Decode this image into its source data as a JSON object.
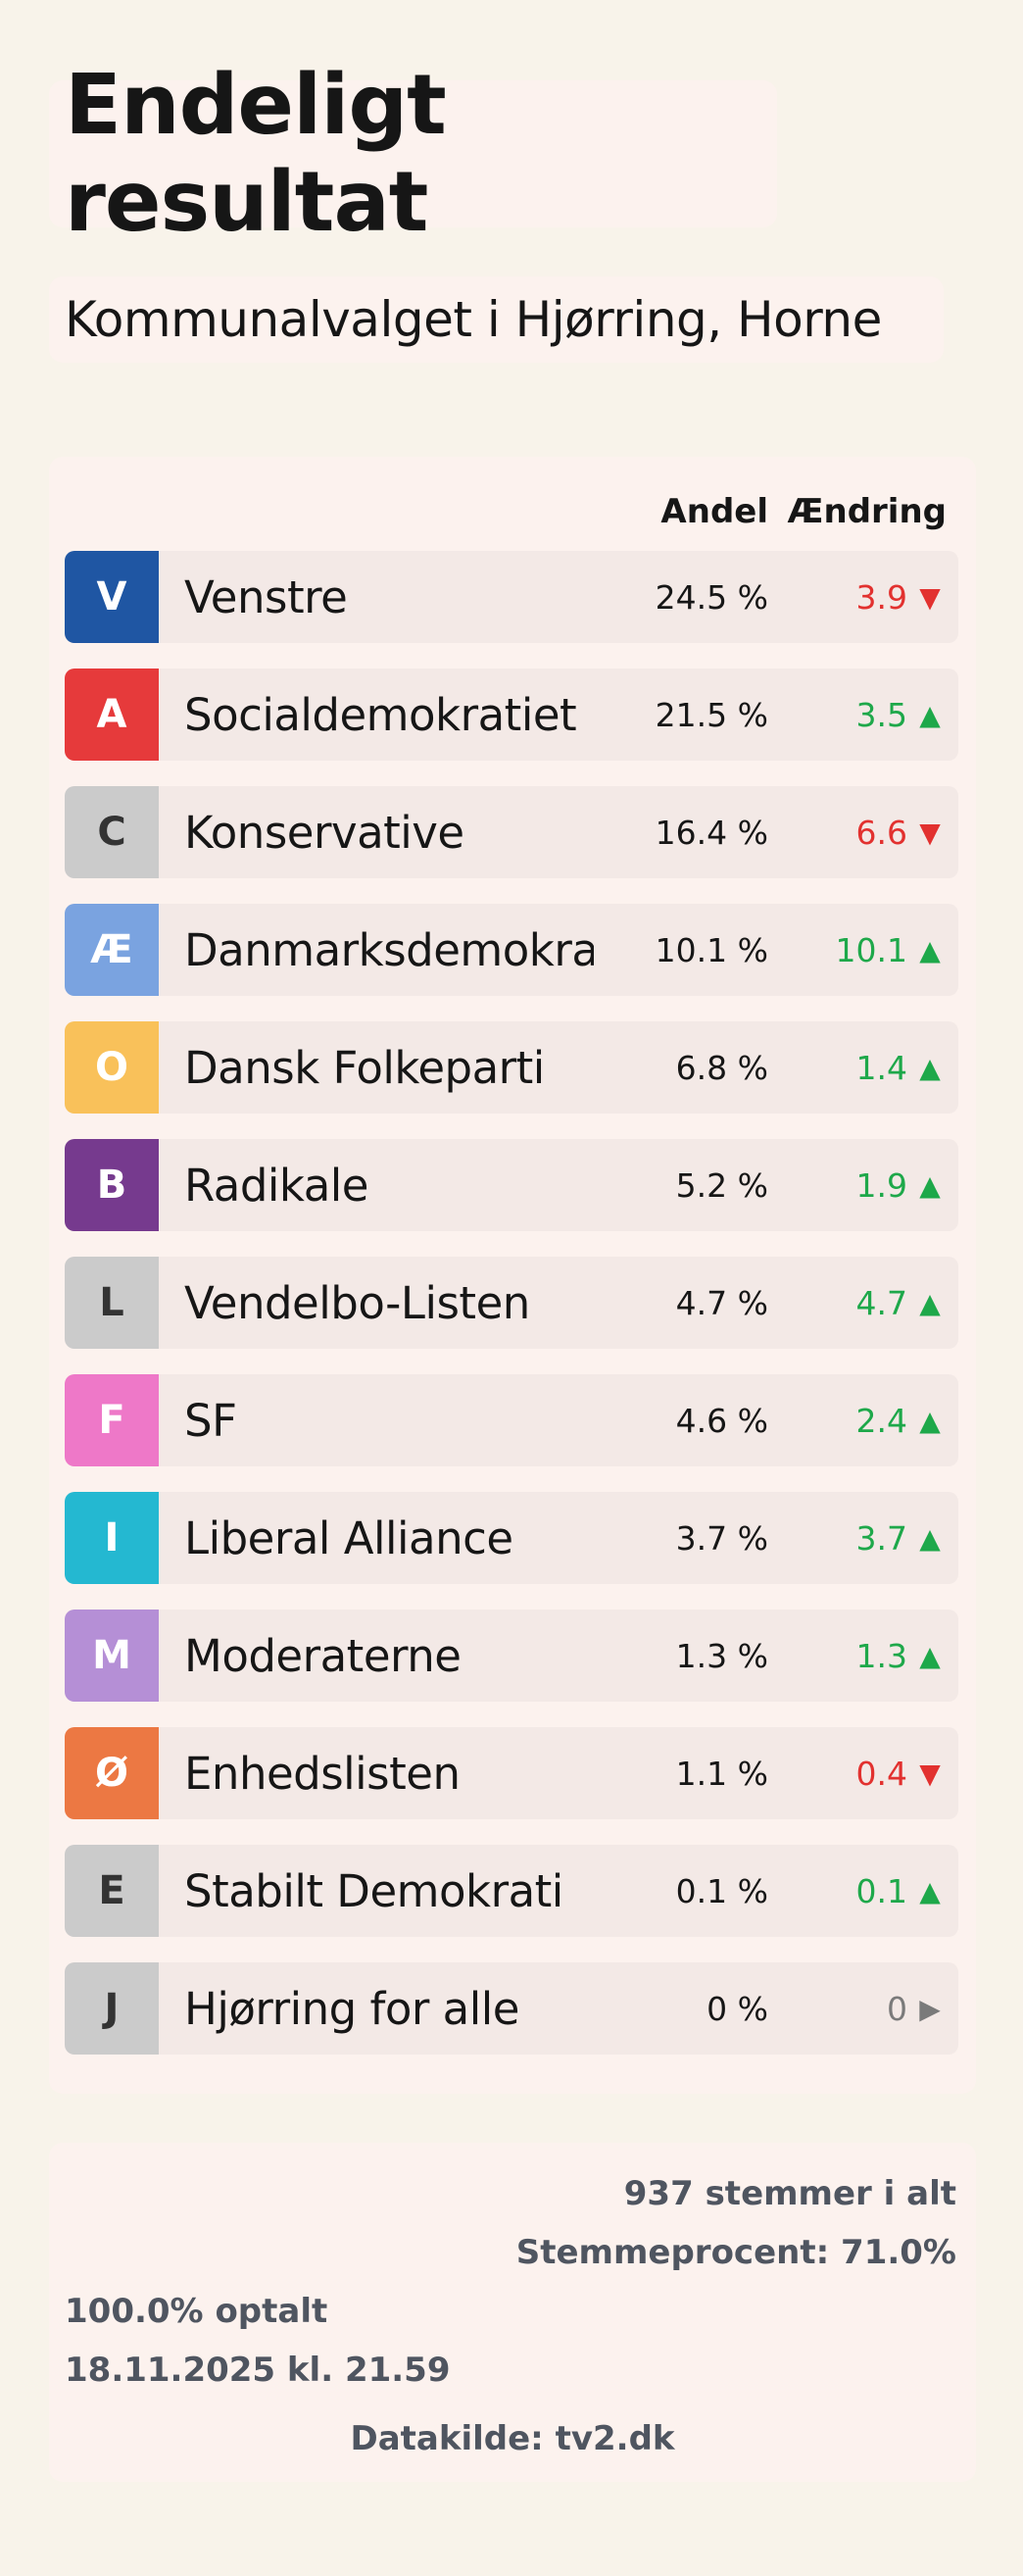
{
  "title": "Endeligt resultat",
  "subtitle": "Kommunalvalget i Hjørring, Horne",
  "table": {
    "col_share": "Andel",
    "col_change": "Ændring",
    "rows": [
      {
        "letter": "V",
        "name": "Venstre",
        "share": "24.5 %",
        "change": "3.9",
        "dir": "down",
        "color": "#1f56a3"
      },
      {
        "letter": "A",
        "name": "Socialdemokratiet",
        "share": "21.5 %",
        "change": "3.5",
        "dir": "up",
        "color": "#e63a3b"
      },
      {
        "letter": "C",
        "name": "Konservative",
        "share": "16.4 %",
        "change": "6.6",
        "dir": "down",
        "color": "#cbcbcb"
      },
      {
        "letter": "Æ",
        "name": "Danmarksdemokraterne",
        "share": "10.1 %",
        "change": "10.1",
        "dir": "up",
        "color": "#7aa3e0"
      },
      {
        "letter": "O",
        "name": "Dansk Folkeparti",
        "share": "6.8 %",
        "change": "1.4",
        "dir": "up",
        "color": "#f9c15a"
      },
      {
        "letter": "B",
        "name": "Radikale",
        "share": "5.2 %",
        "change": "1.9",
        "dir": "up",
        "color": "#763a8e"
      },
      {
        "letter": "L",
        "name": "Vendelbo-Listen",
        "share": "4.7 %",
        "change": "4.7",
        "dir": "up",
        "color": "#cbcbcb"
      },
      {
        "letter": "F",
        "name": "SF",
        "share": "4.6 %",
        "change": "2.4",
        "dir": "up",
        "color": "#ee78c8"
      },
      {
        "letter": "I",
        "name": "Liberal Alliance",
        "share": "3.7 %",
        "change": "3.7",
        "dir": "up",
        "color": "#24b8d1"
      },
      {
        "letter": "M",
        "name": "Moderaterne",
        "share": "1.3 %",
        "change": "1.3",
        "dir": "up",
        "color": "#b58fd6"
      },
      {
        "letter": "Ø",
        "name": "Enhedslisten",
        "share": "1.1 %",
        "change": "0.4",
        "dir": "down",
        "color": "#ec7843"
      },
      {
        "letter": "E",
        "name": "Stabilt Demokrati",
        "share": "0.1 %",
        "change": "0.1",
        "dir": "up",
        "color": "#cbcbcb"
      },
      {
        "letter": "J",
        "name": "Hjørring for alle",
        "share": "0 %",
        "change": "0",
        "dir": "flat",
        "color": "#cbcbcb"
      }
    ]
  },
  "footer": {
    "total_votes": "937 stemmer i alt",
    "turnout": "Stemmeprocent: 71.0%",
    "counted": "100.0% optalt",
    "timestamp": "18.11.2025 kl. 21.59",
    "source": "Datakilde: tv2.dk"
  },
  "colors": {
    "up": "#1ea84a",
    "down": "#e2312f",
    "flat": "#7a7a7a",
    "background": "#f8f3ea",
    "card": "#fcf2ee"
  },
  "icons": {
    "down": "triangle-down-icon",
    "up": "triangle-up-icon",
    "flat": "triangle-right-icon"
  }
}
